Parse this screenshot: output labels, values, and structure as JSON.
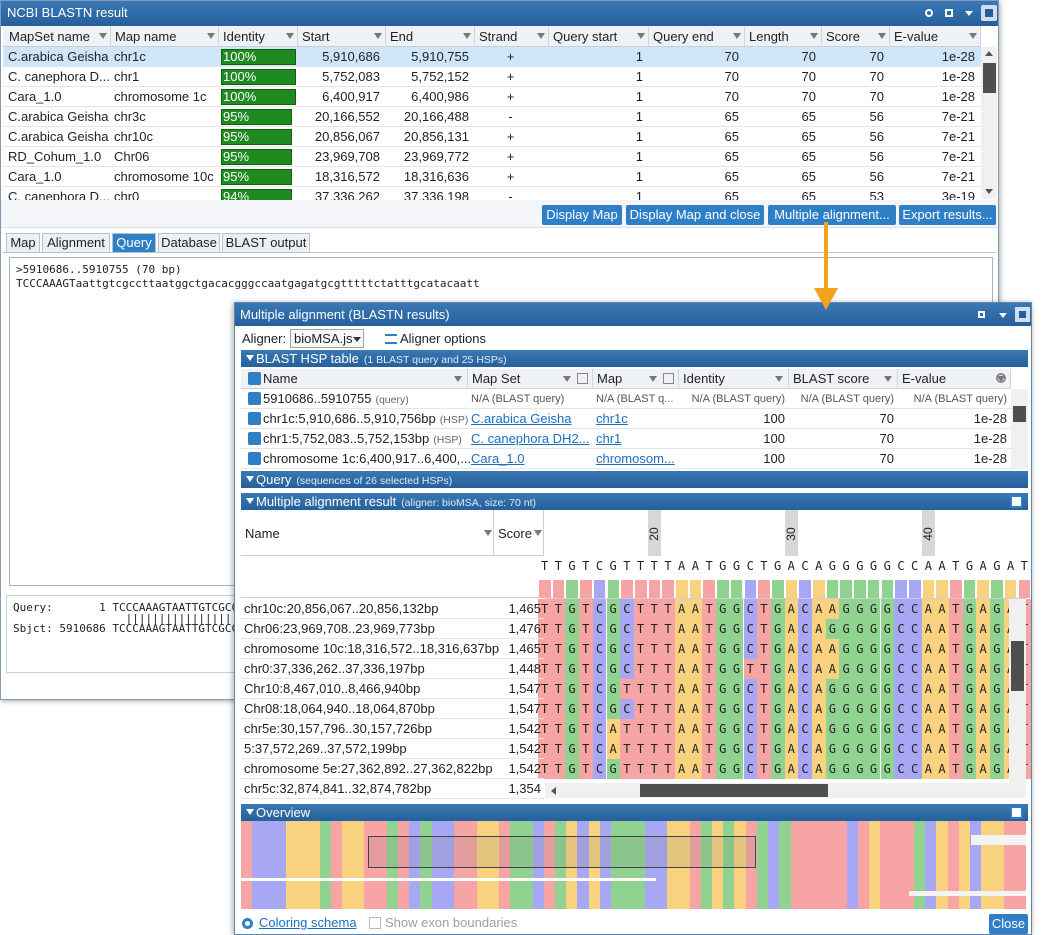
{
  "blast_window": {
    "title": "NCBI BLASTN result",
    "columns": [
      "MapSet name",
      "Map name",
      "Identity",
      "Start",
      "End",
      "Strand",
      "Query start",
      "Query end",
      "Length",
      "Score",
      "E-value"
    ],
    "rows": [
      [
        "C.arabica Geisha",
        "chr1c",
        "100%",
        "5,910,686",
        "5,910,755",
        "+",
        "1",
        "70",
        "70",
        "70",
        "1e-28"
      ],
      [
        "C. canephora D...",
        "chr1",
        "100%",
        "5,752,083",
        "5,752,152",
        "+",
        "1",
        "70",
        "70",
        "70",
        "1e-28"
      ],
      [
        "Cara_1.0",
        "chromosome 1c",
        "100%",
        "6,400,917",
        "6,400,986",
        "+",
        "1",
        "70",
        "70",
        "70",
        "1e-28"
      ],
      [
        "C.arabica Geisha",
        "chr3c",
        "95%",
        "20,166,552",
        "20,166,488",
        "-",
        "1",
        "65",
        "65",
        "56",
        "7e-21"
      ],
      [
        "C.arabica Geisha",
        "chr10c",
        "95%",
        "20,856,067",
        "20,856,131",
        "+",
        "1",
        "65",
        "65",
        "56",
        "7e-21"
      ],
      [
        "RD_Cohum_1.0",
        "Chr06",
        "95%",
        "23,969,708",
        "23,969,772",
        "+",
        "1",
        "65",
        "65",
        "56",
        "7e-21"
      ],
      [
        "Cara_1.0",
        "chromosome 10c",
        "95%",
        "18,316,572",
        "18,316,636",
        "+",
        "1",
        "65",
        "65",
        "56",
        "7e-21"
      ],
      [
        "C. canephora D...",
        "chr0",
        "94%",
        "37,336,262",
        "37,336,198",
        "-",
        "1",
        "65",
        "65",
        "53",
        "3e-19"
      ]
    ],
    "buttons": [
      "Display Map",
      "Display Map and close",
      "Multiple alignment...",
      "Export results..."
    ],
    "tabs": [
      "Map",
      "Alignment",
      "Query",
      "Database",
      "BLAST output"
    ],
    "query_header": ">5910686..5910755 (70 bp)",
    "query_sequence": "TCCCAAAGTaattgtcgccttaatggctgacacgggccaatgagatgcgtttttctatttgcatacaatt",
    "alignment_lines": [
      "Query:       1 TCCCAAAGTAATTGTCGCC",
      "                 ||||||||||||||||||",
      "Sbjct: 5910686 TCCCAAAGTAATTGTCGCC"
    ]
  },
  "msa_window": {
    "title": "Multiple alignment (BLASTN results)",
    "aligner_label": "Aligner:",
    "aligner": "bioMSA.js",
    "aligner_options": "Aligner options",
    "hsp_section": {
      "title": "BLAST HSP table",
      "note": "(1 BLAST query and 25 HSPs)"
    },
    "hsp_columns": [
      "Name",
      "Map Set",
      "Map",
      "Identity",
      "BLAST score",
      "E-value"
    ],
    "hsp_rows": [
      [
        "5910686..5910755",
        "(query)",
        "N/A (BLAST query)",
        "N/A (BLAST q...",
        "N/A (BLAST query)",
        "N/A (BLAST query)",
        "N/A (BLAST query)"
      ],
      [
        "chr1c:5,910,686..5,910,756bp",
        "(HSP)",
        "C.arabica Geisha",
        "chr1c",
        "100",
        "70",
        "1e-28"
      ],
      [
        "chr1:5,752,083..5,752,153bp",
        "(HSP)",
        "C. canephora DH2...",
        "chr1",
        "100",
        "70",
        "1e-28"
      ],
      [
        "chromosome 1c:6,400,917..6,400,...",
        "",
        "Cara_1.0",
        "chromosom...",
        "100",
        "70",
        "1e-28"
      ]
    ],
    "query_section": {
      "title": "Query",
      "note": "(sequences of 26 selected HSPs)"
    },
    "result_section": {
      "title": "Multiple alignment result",
      "note": "(aligner: bioMSA, size: 70 nt)"
    },
    "result_columns": [
      "Name",
      "Score"
    ],
    "ruler_ticks": [
      20,
      30,
      40
    ],
    "consensus": "TTGTCGTTTTAATGGCTGACAGGGGGCCAATGAGAT",
    "alignment_rows": [
      {
        "name": "chr10c:20,856,067..20,856,132bp",
        "score": "1,465",
        "seq": "TTGTCGCTTTAATGGCTGACAAGGGGCCAATGAGAT"
      },
      {
        "name": "Chr06:23,969,708..23,969,773bp",
        "score": "1,476",
        "seq": "TTGTCGCTTTAATGGCTGACAGGGGGCCAATGAGAT"
      },
      {
        "name": "chromosome 10c:18,316,572..18,316,637bp",
        "score": "1,465",
        "seq": "TTGTCGCTTTAATGGCTGACAAGGGGCCAATGAGAT"
      },
      {
        "name": "chr0:37,336,262..37,336,197bp",
        "score": "1,448",
        "seq": "TTGTCGCTTTAATGGTTGACAAGGGGCCAATGAGAT"
      },
      {
        "name": "Chr10:8,467,010..8,466,940bp",
        "score": "1,547",
        "seq": "TTGTCGTTTTAATGGCTGACAGGGGGCCAATGAGAT"
      },
      {
        "name": "Chr08:18,064,940..18,064,870bp",
        "score": "1,547",
        "seq": "TTGTCGCTTTAATGGCTGACAGGGGGCCAATGAGAT"
      },
      {
        "name": "chr5e:30,157,796..30,157,726bp",
        "score": "1,542",
        "seq": "TTGTCATTTTAATGGCTGACAGGGGGCCAATGAGAT"
      },
      {
        "name": "5:37,572,269..37,572,199bp",
        "score": "1,542",
        "seq": "TTGTCATTTTAATGGCTGACAGGGGGCCAATGAGAT"
      },
      {
        "name": "chromosome 5e:27,362,892..27,362,822bp",
        "score": "1,542",
        "seq": "TTGTCGTTTTAATGGCTGACAGGGGGCCAATGAGAT"
      },
      {
        "name": "chr5c:32,874,841..32,874,782bp",
        "score": "1,354"
      }
    ],
    "overview_title": "Overview",
    "coloring_schema": "Coloring schema",
    "exon_boundaries": "Show exon boundaries",
    "close": "Close"
  }
}
